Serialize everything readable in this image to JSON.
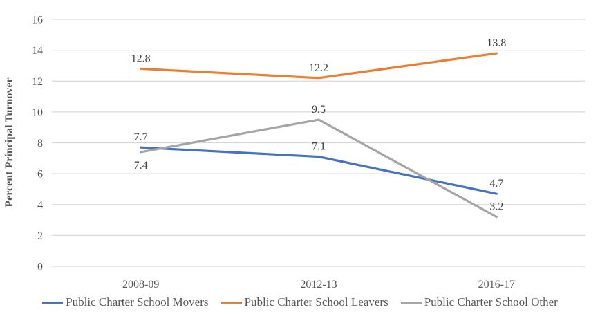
{
  "chart_data": {
    "type": "line",
    "title": "",
    "xlabel": "",
    "ylabel": "Percent Principal Turnover",
    "categories": [
      "2008-09",
      "2012-13",
      "2016-17"
    ],
    "series": [
      {
        "name": "Public Charter School Movers",
        "color": "#4472C4",
        "values": [
          7.7,
          7.1,
          4.7
        ],
        "label_placements": [
          "above",
          "above",
          "above"
        ]
      },
      {
        "name": "Public Charter School Leavers",
        "color": "#ED7D31",
        "values": [
          12.8,
          12.2,
          13.8
        ],
        "label_placements": [
          "above",
          "above",
          "above"
        ]
      },
      {
        "name": "Public Charter School Other",
        "color": "#A5A5A5",
        "values": [
          7.4,
          9.5,
          3.2
        ],
        "label_placements": [
          "below",
          "above",
          "above"
        ]
      }
    ],
    "ylim": [
      0,
      16
    ],
    "yticks": [
      0,
      2,
      4,
      6,
      8,
      10,
      12,
      14,
      16
    ],
    "grid": true,
    "legend_position": "bottom",
    "style": {
      "grid_color": "#D9D9D9",
      "text_color": "#595959",
      "label_color": "#404040",
      "background": "#FFFFFF"
    }
  }
}
